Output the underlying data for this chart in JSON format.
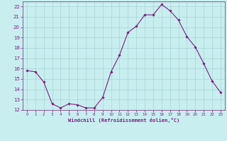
{
  "x": [
    0,
    1,
    2,
    3,
    4,
    5,
    6,
    7,
    8,
    9,
    10,
    11,
    12,
    13,
    14,
    15,
    16,
    17,
    18,
    19,
    20,
    21,
    22,
    23
  ],
  "y": [
    15.8,
    15.7,
    14.7,
    12.6,
    12.2,
    12.6,
    12.5,
    12.2,
    12.2,
    13.2,
    15.7,
    17.3,
    19.5,
    20.1,
    21.2,
    21.2,
    22.2,
    21.6,
    20.7,
    19.1,
    18.1,
    16.5,
    14.8,
    13.7
  ],
  "line_color": "#7b1f7b",
  "marker": "D",
  "marker_size": 1.8,
  "bg_color": "#c8eef0",
  "grid_color": "#9ecece",
  "xlabel": "Windchill (Refroidissement éolien,°C)",
  "xlabel_color": "#7b1f7b",
  "tick_color": "#7b1f7b",
  "spine_color": "#7b1f7b",
  "ylim": [
    12,
    22.5
  ],
  "xlim": [
    -0.5,
    23.5
  ],
  "yticks": [
    12,
    13,
    14,
    15,
    16,
    17,
    18,
    19,
    20,
    21,
    22
  ],
  "xticks": [
    0,
    1,
    2,
    3,
    4,
    5,
    6,
    7,
    8,
    9,
    10,
    11,
    12,
    13,
    14,
    15,
    16,
    17,
    18,
    19,
    20,
    21,
    22,
    23
  ]
}
